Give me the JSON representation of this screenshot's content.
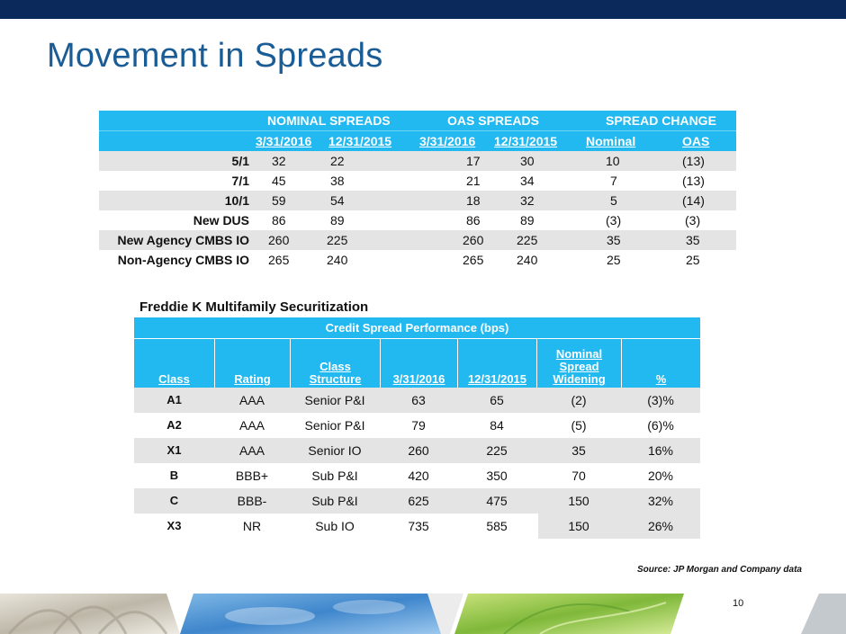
{
  "slide": {
    "title": "Movement in Spreads",
    "page_number": "10",
    "source": "Source: JP Morgan and Company data"
  },
  "spreads_table": {
    "groups": [
      "NOMINAL SPREADS",
      "OAS SPREADS",
      "SPREAD CHANGE"
    ],
    "subheaders": [
      "3/31/2016",
      "12/31/2015",
      "3/31/2016",
      "12/31/2015",
      "Nominal",
      "OAS"
    ],
    "rows": [
      {
        "label": "5/1",
        "values": [
          "32",
          "22",
          "17",
          "30",
          "10",
          "(13)"
        ]
      },
      {
        "label": "7/1",
        "values": [
          "45",
          "38",
          "21",
          "34",
          "7",
          "(13)"
        ]
      },
      {
        "label": "10/1",
        "values": [
          "59",
          "54",
          "18",
          "32",
          "5",
          "(14)"
        ]
      },
      {
        "label": "New DUS",
        "values": [
          "86",
          "89",
          "86",
          "89",
          "(3)",
          "(3)"
        ]
      },
      {
        "label": "New Agency CMBS IO",
        "values": [
          "260",
          "225",
          "260",
          "225",
          "35",
          "35"
        ]
      },
      {
        "label": "Non-Agency CMBS IO",
        "values": [
          "265",
          "240",
          "265",
          "240",
          "25",
          "25"
        ]
      }
    ]
  },
  "freddie_table": {
    "section_title": "Freddie K Multifamily Securitization",
    "caption": "Credit Spread Performance (bps)",
    "headers": [
      "Class",
      "Rating",
      "Class Structure",
      "3/31/2016",
      "12/31/2015",
      "Nominal Spread Widening",
      "%"
    ],
    "rows": [
      [
        "A1",
        "AAA",
        "Senior P&I",
        "63",
        "65",
        "(2)",
        "(3)%"
      ],
      [
        "A2",
        "AAA",
        "Senior P&I",
        "79",
        "84",
        "(5)",
        "(6)%"
      ],
      [
        "X1",
        "AAA",
        "Senior IO",
        "260",
        "225",
        "35",
        "16%"
      ],
      [
        "B",
        "BBB+",
        "Sub P&I",
        "420",
        "350",
        "70",
        "20%"
      ],
      [
        "C",
        "BBB-",
        "Sub P&I",
        "625",
        "475",
        "150",
        "32%"
      ],
      [
        "X3",
        "NR",
        "Sub IO",
        "735",
        "585",
        "150",
        "26%"
      ]
    ]
  },
  "colors": {
    "top_bar": "#0b2a5b",
    "title": "#1a5c95",
    "table_header": "#22b8f0",
    "row_shade": "#e4e4e4"
  }
}
